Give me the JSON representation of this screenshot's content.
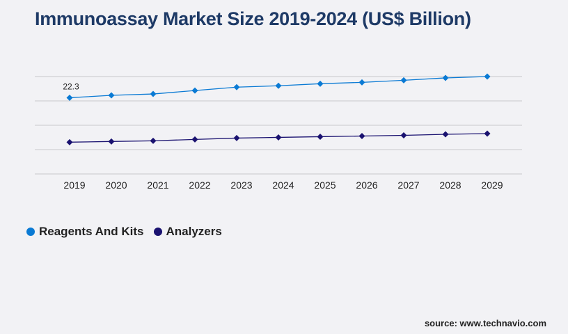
{
  "chart_data": {
    "type": "line",
    "title": "Immunoassay Market Size 2019-2024 (US$ Billion)",
    "xlabel": "",
    "ylabel": "",
    "categories": [
      "2019",
      "2020",
      "2021",
      "2022",
      "2023",
      "2024",
      "2025",
      "2026",
      "2027",
      "2028",
      "2029"
    ],
    "ylim": [
      0,
      28.5
    ],
    "grid": true,
    "legend": "bottom-left",
    "series": [
      {
        "name": "Reagents And Kits",
        "color": "#0a7ad4",
        "values": [
          22.3,
          23.0,
          23.4,
          24.4,
          25.4,
          25.8,
          26.4,
          26.8,
          27.4,
          28.1,
          28.5
        ]
      },
      {
        "name": "Analyzers",
        "color": "#1a1270",
        "values": [
          9.3,
          9.5,
          9.7,
          10.1,
          10.5,
          10.7,
          10.9,
          11.1,
          11.3,
          11.6,
          11.8
        ]
      }
    ],
    "annotations": [
      {
        "category": "2019",
        "series": "Reagents And Kits",
        "text": "22.3"
      }
    ]
  },
  "source": "source: www.technavio.com"
}
